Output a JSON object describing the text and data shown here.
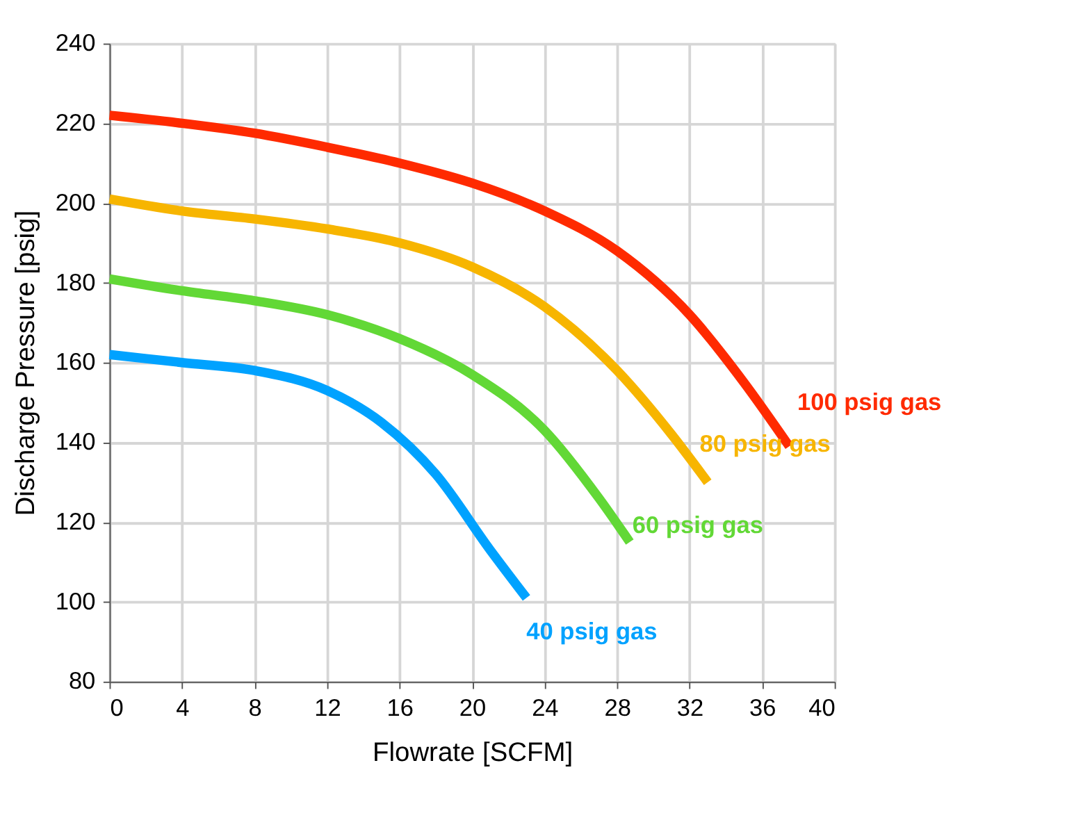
{
  "chart_data": {
    "type": "line",
    "xlabel": "Flowrate [SCFM]",
    "ylabel": "Discharge Pressure [psig]",
    "xlim": [
      0,
      40
    ],
    "xticks": [
      0,
      4,
      8,
      12,
      16,
      20,
      24,
      28,
      32,
      36,
      40
    ],
    "ylim": [
      80,
      240
    ],
    "yticks": [
      80,
      100,
      120,
      140,
      160,
      180,
      200,
      220,
      240
    ],
    "grid": true,
    "marker": "none",
    "line_style": "solid",
    "series": [
      {
        "name": "100 psig gas",
        "color": "#ff2a00",
        "x": [
          0,
          4,
          8,
          12,
          16,
          20,
          24,
          28,
          32,
          35,
          37.5
        ],
        "values": [
          222,
          220,
          217.5,
          214,
          210,
          205,
          198,
          188,
          172,
          155,
          139
        ]
      },
      {
        "name": "80 psig gas",
        "color": "#f7b500",
        "x": [
          0,
          4,
          8,
          12,
          16,
          20,
          24,
          28,
          31,
          33
        ],
        "values": [
          201,
          198,
          196,
          193.5,
          190,
          184,
          174,
          158,
          142,
          130
        ]
      },
      {
        "name": "60 psig gas",
        "color": "#62d836",
        "x": [
          0,
          4,
          8,
          12,
          16,
          20,
          24,
          27,
          28.7
        ],
        "values": [
          181,
          178,
          175.5,
          172,
          166,
          157,
          143,
          126,
          115
        ]
      },
      {
        "name": "40 psig gas",
        "color": "#00a2ff",
        "x": [
          0,
          4,
          8,
          12,
          15,
          18,
          21,
          23
        ],
        "values": [
          162,
          160,
          158,
          153,
          145,
          132,
          113,
          101
        ]
      }
    ]
  }
}
